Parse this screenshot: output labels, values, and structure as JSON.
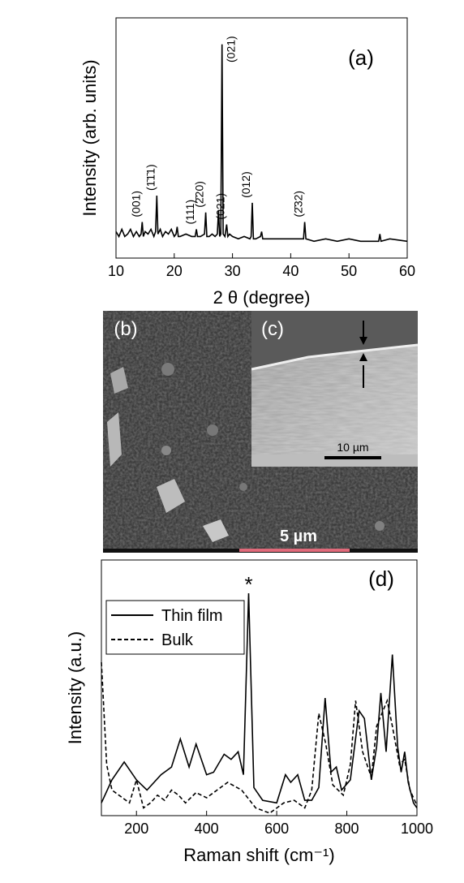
{
  "chart_data": [
    {
      "type": "line",
      "panel_label": "(a)",
      "xlabel": "2 θ (degree)",
      "ylabel": "Intensity (arb. units)",
      "xlim": [
        10,
        60
      ],
      "ylim": [
        0,
        100
      ],
      "xticks": [
        10,
        20,
        30,
        40,
        50,
        60
      ],
      "color": "#000000",
      "x": [
        10,
        10.5,
        11,
        11.5,
        12,
        12.5,
        13,
        13.5,
        14,
        14.3,
        14.5,
        14.7,
        15,
        15.5,
        16,
        16.5,
        16.8,
        17,
        17.2,
        17.6,
        18,
        18.5,
        19,
        19.5,
        20,
        20.3,
        20.5,
        20.7,
        21,
        22,
        23,
        23.6,
        23.8,
        24,
        24.5,
        25.2,
        25.4,
        25.6,
        26,
        26.5,
        27,
        27.4,
        27.6,
        27.8,
        28,
        28.2,
        28.4,
        28.7,
        29,
        29.2,
        29.5,
        30,
        31,
        32,
        33,
        33.2,
        33.4,
        33.6,
        34,
        34.8,
        35,
        35.2,
        36,
        38,
        40,
        42.2,
        42.4,
        42.6,
        44,
        46,
        48,
        50,
        52,
        54,
        55.1,
        55.3,
        55.5,
        57,
        60
      ],
      "values": [
        11,
        9,
        12,
        9,
        10,
        12,
        9,
        11,
        9,
        10,
        15,
        9,
        11,
        10,
        12,
        9,
        11,
        26,
        10,
        12,
        9,
        11,
        10,
        12,
        9,
        10,
        13,
        9,
        9,
        10,
        9,
        9,
        12,
        9,
        9,
        10,
        19,
        9,
        9,
        10,
        9,
        10,
        20,
        9,
        10,
        89,
        10,
        9,
        14,
        9,
        10,
        9,
        8,
        9,
        8,
        9,
        23,
        8,
        8,
        9,
        11,
        8,
        8,
        8,
        8,
        8,
        15,
        8,
        7,
        8,
        7,
        8,
        7,
        7,
        7,
        10,
        7,
        8,
        7
      ],
      "annotations": [
        {
          "text": "(001)",
          "x": 14.5
        },
        {
          "text": "(1̄1̄1)",
          "x": 17
        },
        {
          "text": "(111)",
          "x": 23.8
        },
        {
          "text": "(2̄20)",
          "x": 25.4
        },
        {
          "text": "(021)",
          "x": 28.2
        },
        {
          "text": "(021)",
          "x": 29
        },
        {
          "text": "(012)",
          "x": 33.4
        },
        {
          "text": "(2̄32)",
          "x": 42.4
        }
      ]
    },
    {
      "type": "line",
      "panel_label": "(d)",
      "xlabel": "Raman shift (cm⁻¹)",
      "ylabel": "Intensity (a.u.)",
      "xlim": [
        100,
        1000
      ],
      "ylim": [
        0,
        100
      ],
      "xticks": [
        200,
        400,
        600,
        800,
        1000
      ],
      "legend": "upper left",
      "series": [
        {
          "name": "Thin film",
          "color": "#000000",
          "line_style": "solid",
          "x": [
            100,
            130,
            165,
            200,
            230,
            270,
            300,
            325,
            350,
            370,
            400,
            420,
            450,
            470,
            490,
            505,
            520,
            535,
            560,
            600,
            625,
            640,
            660,
            680,
            700,
            720,
            738,
            755,
            770,
            785,
            810,
            835,
            850,
            870,
            885,
            897,
            912,
            930,
            945,
            955,
            965,
            975,
            990,
            1000
          ],
          "values": [
            5,
            14,
            21,
            14,
            10,
            16,
            19,
            30,
            19,
            28,
            16,
            17,
            24,
            22,
            25,
            16,
            87,
            11,
            6,
            5,
            16,
            13,
            16,
            6,
            6,
            11,
            46,
            17,
            19,
            10,
            14,
            41,
            38,
            14,
            27,
            48,
            25,
            63,
            27,
            17,
            25,
            13,
            5,
            3
          ]
        },
        {
          "name": "Bulk",
          "color": "#000000",
          "line_style": "dashed",
          "x": [
            100,
            115,
            130,
            150,
            180,
            200,
            220,
            240,
            260,
            280,
            300,
            320,
            340,
            370,
            400,
            430,
            460,
            500,
            540,
            580,
            620,
            650,
            680,
            700,
            720,
            740,
            760,
            790,
            810,
            825,
            845,
            870,
            885,
            900,
            915,
            930,
            950,
            965,
            980,
            1000
          ],
          "values": [
            60,
            20,
            10,
            8,
            5,
            14,
            3,
            5,
            8,
            6,
            10,
            8,
            5,
            9,
            7,
            10,
            13,
            10,
            3,
            1,
            5,
            6,
            3,
            10,
            40,
            28,
            12,
            8,
            20,
            45,
            25,
            15,
            35,
            40,
            45,
            35,
            20,
            22,
            10,
            4
          ]
        }
      ],
      "annotations": [
        {
          "text": "*",
          "x": 520
        }
      ]
    }
  ],
  "images": {
    "b": {
      "label": "(b)",
      "scale_bar": "5 µm"
    },
    "c": {
      "label": "(c)",
      "scale_bar": "10 µm"
    }
  }
}
